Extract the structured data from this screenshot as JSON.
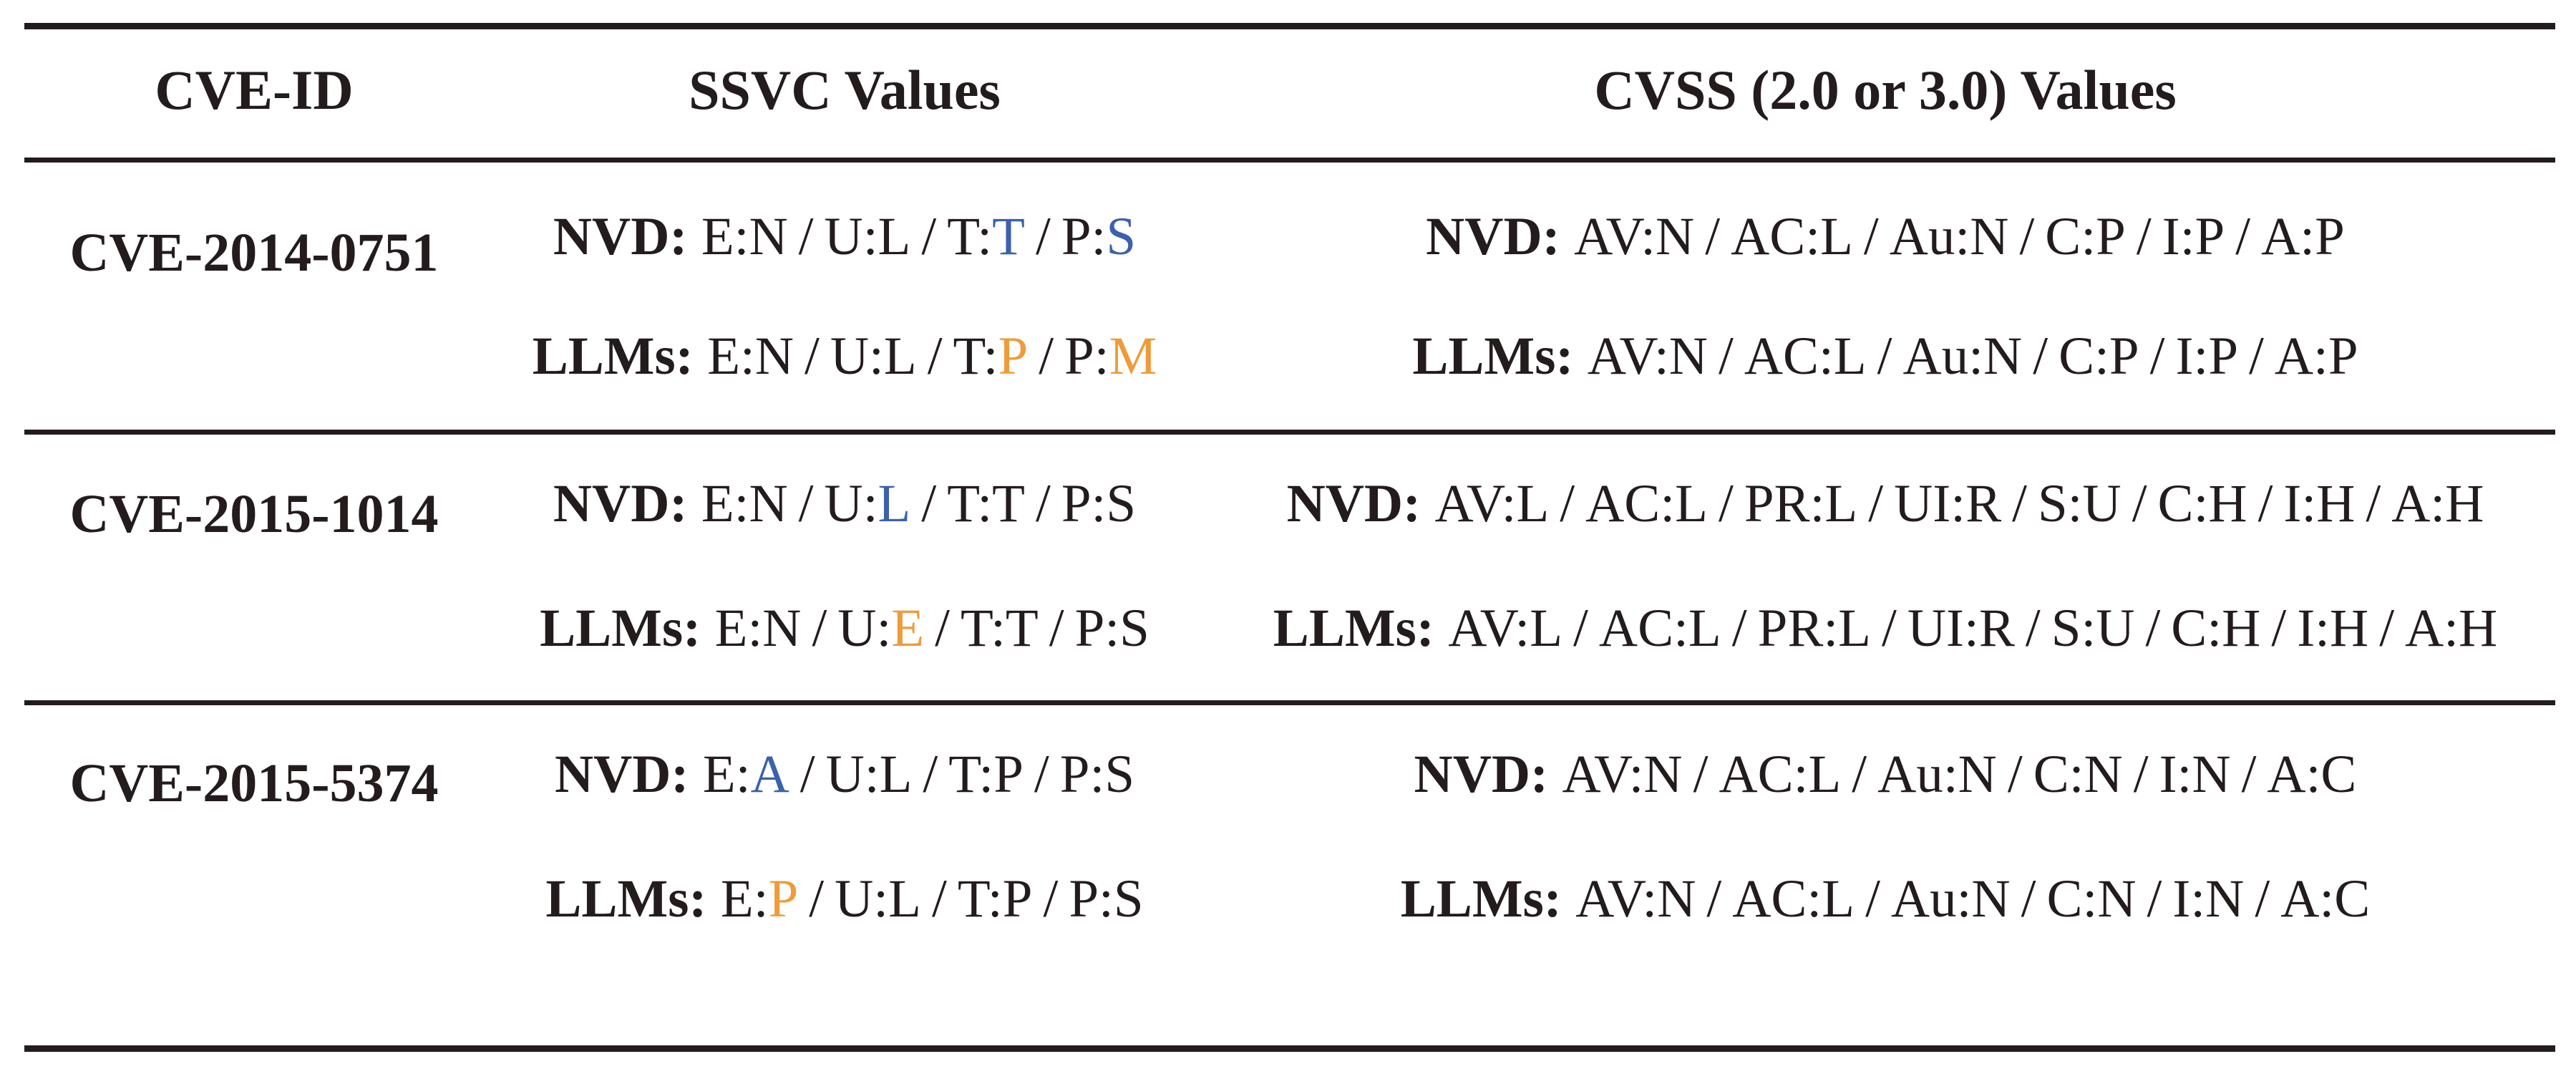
{
  "colors": {
    "text": "#241b1d",
    "blue": "#3a61ad",
    "orange": "#ef9b3a",
    "background": "#ffffff"
  },
  "table": {
    "headers": {
      "cve_id": "CVE-ID",
      "ssvc": "SSVC Values",
      "cvss": "CVSS (2.0 or 3.0) Values"
    },
    "rows": [
      {
        "cve_id": "CVE-2014-0751",
        "ssvc": {
          "nvd": {
            "label": "NVD:",
            "segments": [
              {
                "t": "E:N / U:L / T:"
              },
              {
                "t": "T",
                "c": "blue"
              },
              {
                "t": " / P:"
              },
              {
                "t": "S",
                "c": "blue"
              }
            ]
          },
          "llms": {
            "label": "LLMs:",
            "segments": [
              {
                "t": "E:N / U:L / T:"
              },
              {
                "t": "P",
                "c": "orange"
              },
              {
                "t": " / P:"
              },
              {
                "t": "M",
                "c": "orange"
              }
            ]
          }
        },
        "cvss": {
          "nvd": {
            "label": "NVD:",
            "segments": [
              {
                "t": "AV:N / AC:L / Au:N / C:P / I:P / A:P"
              }
            ]
          },
          "llms": {
            "label": "LLMs:",
            "segments": [
              {
                "t": "AV:N / AC:L / Au:N / C:P / I:P / A:P"
              }
            ]
          }
        }
      },
      {
        "cve_id": "CVE-2015-1014",
        "ssvc": {
          "nvd": {
            "label": "NVD:",
            "segments": [
              {
                "t": "E:N / U:"
              },
              {
                "t": "L",
                "c": "blue"
              },
              {
                "t": " / T:T / P:S"
              }
            ]
          },
          "llms": {
            "label": "LLMs:",
            "segments": [
              {
                "t": "E:N / U:"
              },
              {
                "t": "E",
                "c": "orange"
              },
              {
                "t": " / T:T / P:S"
              }
            ]
          }
        },
        "cvss": {
          "nvd": {
            "label": "NVD:",
            "segments": [
              {
                "t": "AV:L / AC:L / PR:L / UI:R / S:U / C:H / I:H / A:H"
              }
            ]
          },
          "llms": {
            "label": "LLMs:",
            "segments": [
              {
                "t": "AV:L / AC:L / PR:L / UI:R / S:U / C:H / I:H / A:H"
              }
            ]
          }
        }
      },
      {
        "cve_id": "CVE-2015-5374",
        "ssvc": {
          "nvd": {
            "label": "NVD:",
            "segments": [
              {
                "t": "E:"
              },
              {
                "t": "A",
                "c": "blue"
              },
              {
                "t": " / U:L / T:P / P:S"
              }
            ]
          },
          "llms": {
            "label": "LLMs:",
            "segments": [
              {
                "t": "E:"
              },
              {
                "t": "P",
                "c": "orange"
              },
              {
                "t": " / U:L / T:P / P:S"
              }
            ]
          }
        },
        "cvss": {
          "nvd": {
            "label": "NVD:",
            "segments": [
              {
                "t": "AV:N / AC:L / Au:N / C:N / I:N / A:C"
              }
            ]
          },
          "llms": {
            "label": "LLMs:",
            "segments": [
              {
                "t": "AV:N / AC:L / Au:N / C:N / I:N / A:C"
              }
            ]
          }
        }
      }
    ]
  }
}
